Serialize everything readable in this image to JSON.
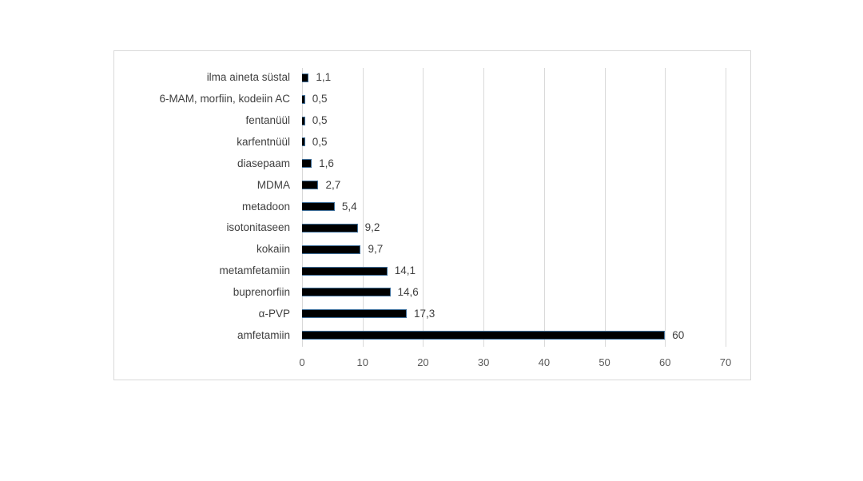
{
  "chart_data": {
    "type": "bar",
    "orientation": "horizontal",
    "title": "",
    "xlabel": "",
    "ylabel": "",
    "legend": "none",
    "grid": true,
    "xlim": [
      0,
      70
    ],
    "x_ticks": [
      0,
      10,
      20,
      30,
      40,
      50,
      60,
      70
    ],
    "categories": [
      "ilma aineta süstal",
      "6-MAM, morfiin, kodeiin AC",
      "fentanüül",
      "karfentnüül",
      "diasepaam",
      "MDMA",
      "metadoon",
      "isotonitaseen",
      "kokaiin",
      "metamfetamiin",
      "buprenorfiin",
      "α-PVP",
      "amfetamiin"
    ],
    "values": [
      1.1,
      0.5,
      0.5,
      0.5,
      1.6,
      2.7,
      5.4,
      9.2,
      9.7,
      14.1,
      14.6,
      17.3,
      60
    ],
    "value_labels": [
      "1,1",
      "0,5",
      "0,5",
      "0,5",
      "1,6",
      "2,7",
      "5,4",
      "9,2",
      "9,7",
      "14,1",
      "14,6",
      "17,3",
      "60"
    ],
    "colors": {
      "bar_fill": "#000000",
      "bar_outline": "#41719c",
      "gridline": "#d9d9d9",
      "frame_border": "#d9d9d9",
      "category_label": "#404040",
      "value_label": "#404040",
      "tick_label": "#595959",
      "background": "#ffffff"
    }
  }
}
